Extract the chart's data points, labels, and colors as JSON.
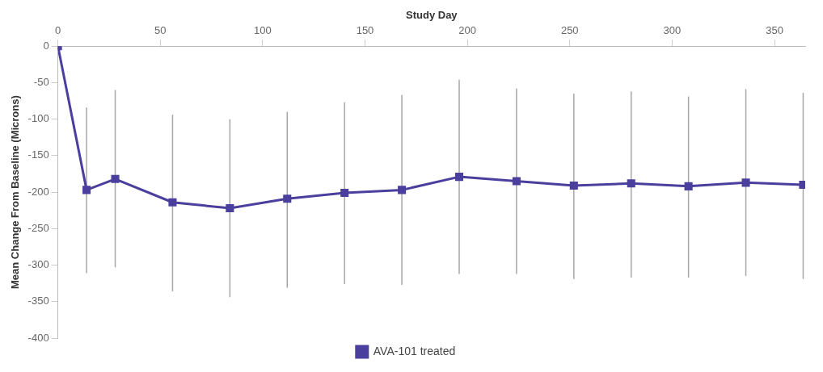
{
  "chart_data": {
    "type": "line",
    "xlabel": "Study Day",
    "ylabel": "Mean Change From Baseline (Microns)",
    "x": [
      0,
      14,
      28,
      56,
      84,
      112,
      140,
      168,
      196,
      224,
      252,
      280,
      308,
      336,
      364
    ],
    "series": [
      {
        "name": "AVA-101 treated",
        "color": "#4b3f9e",
        "values": [
          0,
          -197,
          -182,
          -214,
          -222,
          -209,
          -201,
          -197,
          -179,
          -185,
          -191,
          -188,
          -192,
          -187,
          -190
        ],
        "errors": [
          null,
          [
            -311,
            -84
          ],
          [
            -303,
            -60
          ],
          [
            -336,
            -94
          ],
          [
            -344,
            -100
          ],
          [
            -331,
            -90
          ],
          [
            -326,
            -77
          ],
          [
            -327,
            -67
          ],
          [
            -312,
            -46
          ],
          [
            -312,
            -58
          ],
          [
            -319,
            -65
          ],
          [
            -317,
            -62
          ],
          [
            -317,
            -69
          ],
          [
            -315,
            -59
          ],
          [
            -319,
            -64
          ]
        ]
      }
    ],
    "xlim": [
      0,
      365
    ],
    "xticks": [
      0,
      50,
      100,
      150,
      200,
      250,
      300,
      350
    ],
    "ylim": [
      -400,
      0
    ],
    "yticks": [
      0,
      -50,
      -100,
      -150,
      -200,
      -250,
      -300,
      -350,
      -400
    ],
    "grid": false,
    "legend": "bottom",
    "marker": "square",
    "line_style": "solid"
  }
}
